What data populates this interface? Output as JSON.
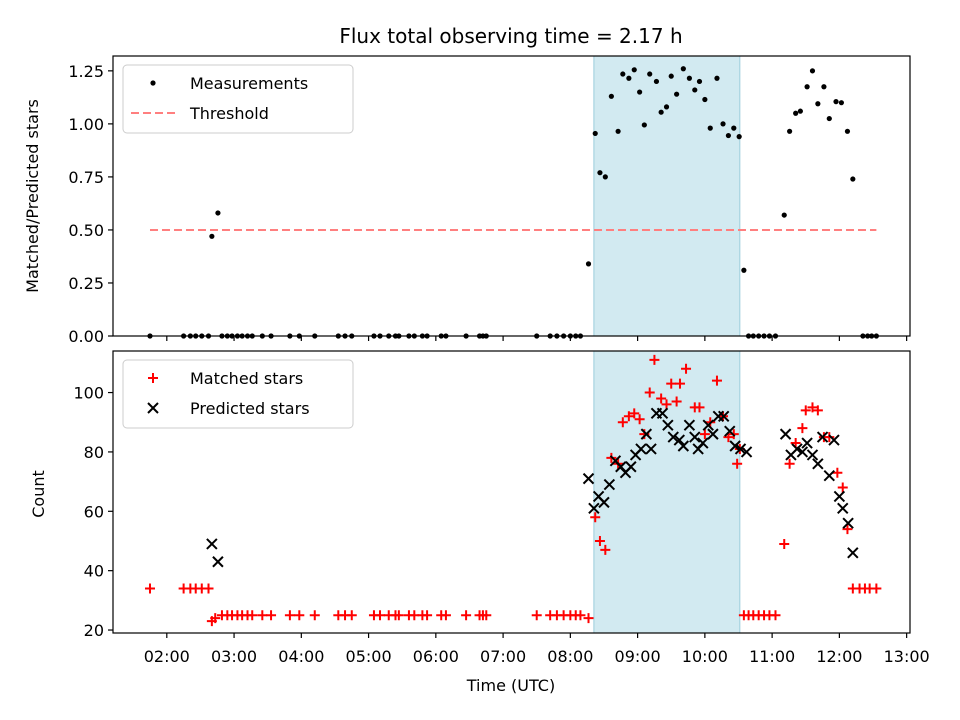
{
  "chart_data": [
    {
      "type": "scatter",
      "title": "Flux total observing time = 2.17 h",
      "xlabel": "",
      "ylabel": "Matched/Predicted stars",
      "xlim": [
        1.2,
        13.05
      ],
      "ylim": [
        0,
        1.32
      ],
      "yticks": [
        0.0,
        0.25,
        0.5,
        0.75,
        1.0,
        1.25
      ],
      "ytick_labels": [
        "0.00",
        "0.25",
        "0.50",
        "0.75",
        "1.00",
        "1.25"
      ],
      "xticks": [
        2,
        3,
        4,
        5,
        6,
        7,
        8,
        9,
        10,
        11,
        12,
        13
      ],
      "shaded_interval": [
        8.35,
        10.52
      ],
      "legend": {
        "position": "upper-left",
        "entries": [
          {
            "label": "Measurements",
            "marker": "dot",
            "color": "#000000"
          },
          {
            "label": "Threshold",
            "marker": "dashed-line",
            "color": "#ff7f7f"
          }
        ]
      },
      "threshold": {
        "value": 0.5,
        "x_range": [
          1.75,
          12.55
        ],
        "color": "#ff7f7f"
      },
      "series": [
        {
          "name": "Measurements",
          "marker": "dot",
          "color": "#000000",
          "points": [
            [
              1.75,
              0
            ],
            [
              2.25,
              0
            ],
            [
              2.35,
              0
            ],
            [
              2.43,
              0
            ],
            [
              2.52,
              0
            ],
            [
              2.62,
              0
            ],
            [
              2.82,
              0
            ],
            [
              2.9,
              0
            ],
            [
              2.97,
              0
            ],
            [
              3.05,
              0
            ],
            [
              3.12,
              0
            ],
            [
              3.2,
              0
            ],
            [
              3.27,
              0
            ],
            [
              3.42,
              0
            ],
            [
              3.55,
              0
            ],
            [
              3.83,
              0
            ],
            [
              3.97,
              0
            ],
            [
              4.2,
              0
            ],
            [
              4.55,
              0
            ],
            [
              4.65,
              0
            ],
            [
              4.75,
              0
            ],
            [
              5.08,
              0
            ],
            [
              5.17,
              0
            ],
            [
              5.3,
              0
            ],
            [
              5.4,
              0
            ],
            [
              5.45,
              0
            ],
            [
              5.6,
              0
            ],
            [
              5.68,
              0
            ],
            [
              5.8,
              0
            ],
            [
              5.87,
              0
            ],
            [
              6.08,
              0
            ],
            [
              6.15,
              0
            ],
            [
              6.45,
              0
            ],
            [
              6.65,
              0
            ],
            [
              6.7,
              0
            ],
            [
              6.75,
              0
            ],
            [
              7.5,
              0
            ],
            [
              7.7,
              0
            ],
            [
              7.8,
              0
            ],
            [
              7.9,
              0
            ],
            [
              8.0,
              0
            ],
            [
              8.08,
              0
            ],
            [
              8.15,
              0
            ],
            [
              2.67,
              0.47
            ],
            [
              2.76,
              0.58
            ],
            [
              8.27,
              0.34
            ],
            [
              8.37,
              0.955
            ],
            [
              8.44,
              0.77
            ],
            [
              8.52,
              0.75
            ],
            [
              8.61,
              1.13
            ],
            [
              8.71,
              0.965
            ],
            [
              8.78,
              1.235
            ],
            [
              8.87,
              1.215
            ],
            [
              8.95,
              1.255
            ],
            [
              9.03,
              1.15
            ],
            [
              9.1,
              0.995
            ],
            [
              9.18,
              1.235
            ],
            [
              9.28,
              1.2
            ],
            [
              9.35,
              1.055
            ],
            [
              9.43,
              1.08
            ],
            [
              9.5,
              1.225
            ],
            [
              9.58,
              1.14
            ],
            [
              9.68,
              1.26
            ],
            [
              9.77,
              1.215
            ],
            [
              9.85,
              1.16
            ],
            [
              9.92,
              1.2
            ],
            [
              10.0,
              1.115
            ],
            [
              10.08,
              0.98
            ],
            [
              10.18,
              1.215
            ],
            [
              10.27,
              1.0
            ],
            [
              10.35,
              0.945
            ],
            [
              10.43,
              0.98
            ],
            [
              10.51,
              0.94
            ],
            [
              10.58,
              0.31
            ],
            [
              10.65,
              0
            ],
            [
              10.72,
              0
            ],
            [
              10.8,
              0
            ],
            [
              10.88,
              0
            ],
            [
              10.96,
              0
            ],
            [
              11.05,
              0
            ],
            [
              11.18,
              0.57
            ],
            [
              11.26,
              0.965
            ],
            [
              11.35,
              1.05
            ],
            [
              11.42,
              1.06
            ],
            [
              11.52,
              1.175
            ],
            [
              11.6,
              1.25
            ],
            [
              11.68,
              1.095
            ],
            [
              11.77,
              1.175
            ],
            [
              11.85,
              1.025
            ],
            [
              11.95,
              1.105
            ],
            [
              12.03,
              1.1
            ],
            [
              12.12,
              0.965
            ],
            [
              12.2,
              0.74
            ],
            [
              12.35,
              0
            ],
            [
              12.42,
              0
            ],
            [
              12.48,
              0
            ],
            [
              12.55,
              0
            ]
          ]
        }
      ]
    },
    {
      "type": "scatter",
      "title": "",
      "xlabel": "Time (UTC)",
      "ylabel": "Count",
      "xlim": [
        1.2,
        13.05
      ],
      "ylim": [
        19,
        114
      ],
      "yticks": [
        20,
        40,
        60,
        80,
        100
      ],
      "ytick_labels": [
        "20",
        "40",
        "60",
        "80",
        "100"
      ],
      "xticks": [
        2,
        3,
        4,
        5,
        6,
        7,
        8,
        9,
        10,
        11,
        12,
        13
      ],
      "xtick_labels": [
        "02:00",
        "03:00",
        "04:00",
        "05:00",
        "06:00",
        "07:00",
        "08:00",
        "09:00",
        "10:00",
        "11:00",
        "12:00",
        "13:00"
      ],
      "shaded_interval": [
        8.35,
        10.52
      ],
      "legend": {
        "position": "upper-left",
        "entries": [
          {
            "label": "Matched stars",
            "marker": "plus",
            "color": "#ff0000"
          },
          {
            "label": "Predicted stars",
            "marker": "x",
            "color": "#000000"
          }
        ]
      },
      "series": [
        {
          "name": "Matched stars",
          "marker": "plus",
          "color": "#ff0000",
          "points": [
            [
              1.75,
              34
            ],
            [
              2.25,
              34
            ],
            [
              2.35,
              34
            ],
            [
              2.43,
              34
            ],
            [
              2.52,
              34
            ],
            [
              2.62,
              34
            ],
            [
              2.67,
              23
            ],
            [
              2.72,
              24
            ],
            [
              2.82,
              25
            ],
            [
              2.9,
              25
            ],
            [
              2.97,
              25
            ],
            [
              3.05,
              25
            ],
            [
              3.12,
              25
            ],
            [
              3.2,
              25
            ],
            [
              3.27,
              25
            ],
            [
              3.42,
              25
            ],
            [
              3.55,
              25
            ],
            [
              3.83,
              25
            ],
            [
              3.97,
              25
            ],
            [
              4.2,
              25
            ],
            [
              4.55,
              25
            ],
            [
              4.65,
              25
            ],
            [
              4.75,
              25
            ],
            [
              5.08,
              25
            ],
            [
              5.17,
              25
            ],
            [
              5.3,
              25
            ],
            [
              5.4,
              25
            ],
            [
              5.45,
              25
            ],
            [
              5.6,
              25
            ],
            [
              5.68,
              25
            ],
            [
              5.8,
              25
            ],
            [
              5.87,
              25
            ],
            [
              6.08,
              25
            ],
            [
              6.15,
              25
            ],
            [
              6.45,
              25
            ],
            [
              6.65,
              25
            ],
            [
              6.7,
              25
            ],
            [
              6.75,
              25
            ],
            [
              7.5,
              25
            ],
            [
              7.7,
              25
            ],
            [
              7.8,
              25
            ],
            [
              7.9,
              25
            ],
            [
              8.0,
              25
            ],
            [
              8.08,
              25
            ],
            [
              8.15,
              25
            ],
            [
              8.27,
              24
            ],
            [
              8.37,
              58
            ],
            [
              8.44,
              50
            ],
            [
              8.52,
              47
            ],
            [
              8.61,
              78
            ],
            [
              8.71,
              76
            ],
            [
              8.78,
              90
            ],
            [
              8.87,
              92
            ],
            [
              8.95,
              93
            ],
            [
              9.03,
              91
            ],
            [
              9.1,
              86
            ],
            [
              9.18,
              100
            ],
            [
              9.25,
              111
            ],
            [
              9.35,
              98
            ],
            [
              9.43,
              96
            ],
            [
              9.5,
              103
            ],
            [
              9.58,
              97
            ],
            [
              9.63,
              103
            ],
            [
              9.72,
              108
            ],
            [
              9.85,
              95
            ],
            [
              9.92,
              95
            ],
            [
              10.0,
              86
            ],
            [
              10.08,
              90
            ],
            [
              10.18,
              104
            ],
            [
              10.27,
              92
            ],
            [
              10.35,
              85
            ],
            [
              10.43,
              86
            ],
            [
              10.48,
              76
            ],
            [
              10.52,
              81
            ],
            [
              10.58,
              25
            ],
            [
              10.65,
              25
            ],
            [
              10.72,
              25
            ],
            [
              10.8,
              25
            ],
            [
              10.88,
              25
            ],
            [
              10.96,
              25
            ],
            [
              11.05,
              25
            ],
            [
              11.18,
              49
            ],
            [
              11.26,
              76
            ],
            [
              11.35,
              83
            ],
            [
              11.45,
              88
            ],
            [
              11.5,
              94
            ],
            [
              11.6,
              95
            ],
            [
              11.68,
              94
            ],
            [
              11.77,
              85
            ],
            [
              11.85,
              85
            ],
            [
              11.97,
              73
            ],
            [
              12.05,
              68
            ],
            [
              12.12,
              54
            ],
            [
              12.2,
              34
            ],
            [
              12.3,
              34
            ],
            [
              12.38,
              34
            ],
            [
              12.45,
              34
            ],
            [
              12.55,
              34
            ]
          ]
        },
        {
          "name": "Predicted stars",
          "marker": "x",
          "color": "#000000",
          "points": [
            [
              2.67,
              49
            ],
            [
              2.76,
              43
            ],
            [
              8.27,
              71
            ],
            [
              8.35,
              61
            ],
            [
              8.42,
              65
            ],
            [
              8.5,
              63
            ],
            [
              8.58,
              69
            ],
            [
              8.67,
              77
            ],
            [
              8.75,
              75
            ],
            [
              8.82,
              73
            ],
            [
              8.9,
              75
            ],
            [
              8.97,
              79
            ],
            [
              9.05,
              81
            ],
            [
              9.13,
              86
            ],
            [
              9.2,
              81
            ],
            [
              9.28,
              93
            ],
            [
              9.37,
              93
            ],
            [
              9.45,
              89
            ],
            [
              9.53,
              85
            ],
            [
              9.62,
              84
            ],
            [
              9.68,
              82
            ],
            [
              9.77,
              89
            ],
            [
              9.85,
              85
            ],
            [
              9.9,
              81
            ],
            [
              9.97,
              83
            ],
            [
              10.05,
              89
            ],
            [
              10.12,
              86
            ],
            [
              10.2,
              92
            ],
            [
              10.28,
              92
            ],
            [
              10.37,
              87
            ],
            [
              10.45,
              82
            ],
            [
              10.53,
              81
            ],
            [
              10.62,
              80
            ],
            [
              11.2,
              86
            ],
            [
              11.28,
              79
            ],
            [
              11.37,
              81
            ],
            [
              11.45,
              80
            ],
            [
              11.52,
              83
            ],
            [
              11.6,
              79
            ],
            [
              11.68,
              76
            ],
            [
              11.75,
              85
            ],
            [
              11.85,
              72
            ],
            [
              11.92,
              84
            ],
            [
              12.0,
              65
            ],
            [
              12.05,
              61
            ],
            [
              12.13,
              56
            ],
            [
              12.2,
              46
            ]
          ]
        }
      ]
    }
  ]
}
